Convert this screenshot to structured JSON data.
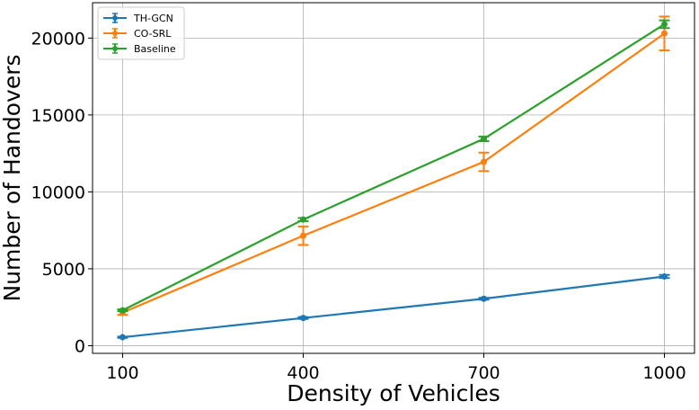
{
  "chart_data": {
    "type": "line",
    "xlabel": "Density of Vehicles",
    "ylabel": "Number of Handovers",
    "x": [
      100,
      400,
      700,
      1000
    ],
    "x_tick_labels": [
      "100",
      "400",
      "700",
      "1000"
    ],
    "y_ticks": [
      0,
      5000,
      10000,
      15000,
      20000
    ],
    "y_tick_labels": [
      "0",
      "5000",
      "10000",
      "15000",
      "20000"
    ],
    "xlim": [
      50,
      1050
    ],
    "ylim": [
      -500,
      22300
    ],
    "grid": true,
    "legend_position": "top-left",
    "series": [
      {
        "name": "TH-GCN",
        "color": "#1f77b4",
        "values": [
          550,
          1800,
          3050,
          4500
        ],
        "errors": [
          40,
          60,
          60,
          100
        ]
      },
      {
        "name": "CO-SRL",
        "color": "#ff7f0e",
        "values": [
          2150,
          7150,
          11950,
          20300
        ],
        "errors": [
          150,
          600,
          600,
          1100
        ]
      },
      {
        "name": "Baseline",
        "color": "#2ca02c",
        "values": [
          2300,
          8200,
          13450,
          20900
        ],
        "errors": [
          60,
          100,
          150,
          250
        ]
      }
    ]
  }
}
